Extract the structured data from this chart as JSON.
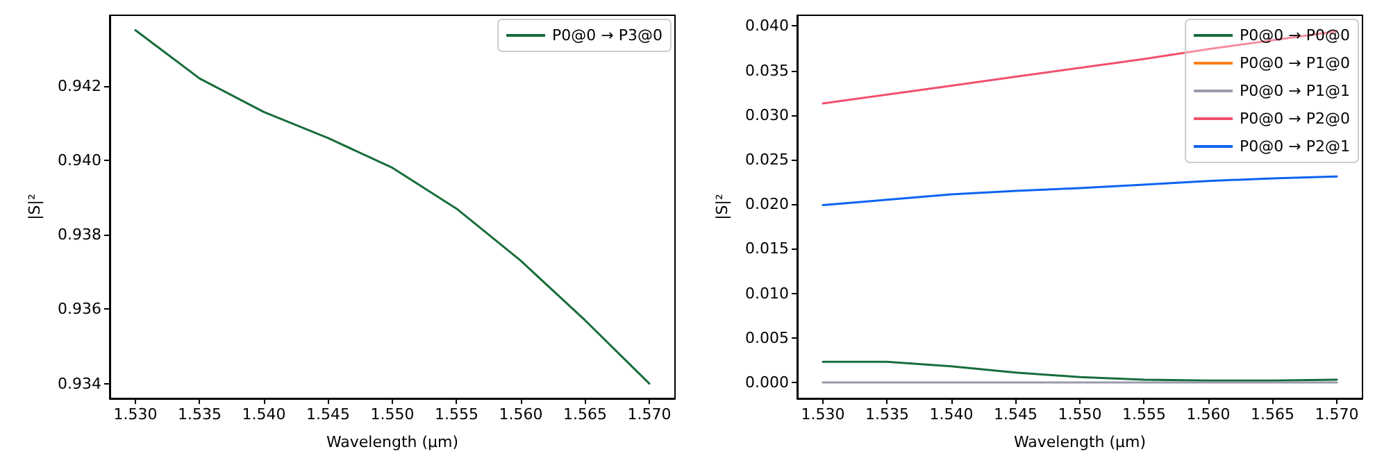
{
  "chart_data": [
    {
      "type": "line",
      "xlabel": "Wavelength (µm)",
      "ylabel": "|S|²",
      "x": [
        1.53,
        1.535,
        1.54,
        1.545,
        1.55,
        1.555,
        1.56,
        1.565,
        1.57
      ],
      "series": [
        {
          "name": "P0@0 → P3@0",
          "color": "#176d3a",
          "values": [
            0.9435,
            0.9422,
            0.9413,
            0.9406,
            0.9398,
            0.9387,
            0.9373,
            0.9357,
            0.934
          ]
        }
      ],
      "xlim": [
        1.528,
        1.572
      ],
      "ylim": [
        0.9336,
        0.9439
      ],
      "xticks": [
        {
          "value": 1.53,
          "label": "1.530"
        },
        {
          "value": 1.535,
          "label": "1.535"
        },
        {
          "value": 1.54,
          "label": "1.540"
        },
        {
          "value": 1.545,
          "label": "1.545"
        },
        {
          "value": 1.55,
          "label": "1.550"
        },
        {
          "value": 1.555,
          "label": "1.555"
        },
        {
          "value": 1.56,
          "label": "1.560"
        },
        {
          "value": 1.565,
          "label": "1.565"
        },
        {
          "value": 1.57,
          "label": "1.570"
        }
      ],
      "yticks": [
        {
          "value": 0.934,
          "label": "0.934"
        },
        {
          "value": 0.936,
          "label": "0.936"
        },
        {
          "value": 0.938,
          "label": "0.938"
        },
        {
          "value": 0.94,
          "label": "0.940"
        },
        {
          "value": 0.942,
          "label": "0.942"
        }
      ],
      "legend": "top right"
    },
    {
      "type": "line",
      "xlabel": "Wavelength (µm)",
      "ylabel": "|S|²",
      "x": [
        1.53,
        1.535,
        1.54,
        1.545,
        1.55,
        1.555,
        1.56,
        1.565,
        1.57
      ],
      "series": [
        {
          "name": "P0@0 → P0@0",
          "color": "#176d3a",
          "values": [
            0.0023,
            0.0023,
            0.0018,
            0.0011,
            0.0006,
            0.0003,
            0.0002,
            0.0002,
            0.0003
          ]
        },
        {
          "name": "P0@0 → P1@0",
          "color": "#ff7f0e",
          "values": [
            null,
            null,
            null,
            null,
            null,
            null,
            null,
            null,
            null
          ]
        },
        {
          "name": "P0@0 → P1@1",
          "color": "#9a9aa9",
          "values": [
            0,
            0,
            0,
            0,
            0,
            0,
            0,
            0,
            0
          ]
        },
        {
          "name": "P0@0 → P2@0",
          "color": "#f0506e",
          "values": [
            0.0313,
            0.0323,
            0.0333,
            0.0343,
            0.0353,
            0.0363,
            0.0374,
            0.0384,
            0.0394
          ]
        },
        {
          "name": "P0@0 → P2@1",
          "color": "#0c64f0",
          "values": [
            0.0199,
            0.0205,
            0.0211,
            0.0215,
            0.0218,
            0.0222,
            0.0226,
            0.0229,
            0.0231
          ]
        }
      ],
      "xlim": [
        1.528,
        1.572
      ],
      "ylim": [
        -0.0018,
        0.0412
      ],
      "xticks": [
        {
          "value": 1.53,
          "label": "1.530"
        },
        {
          "value": 1.535,
          "label": "1.535"
        },
        {
          "value": 1.54,
          "label": "1.540"
        },
        {
          "value": 1.545,
          "label": "1.545"
        },
        {
          "value": 1.55,
          "label": "1.550"
        },
        {
          "value": 1.555,
          "label": "1.555"
        },
        {
          "value": 1.56,
          "label": "1.560"
        },
        {
          "value": 1.565,
          "label": "1.565"
        },
        {
          "value": 1.57,
          "label": "1.570"
        }
      ],
      "yticks": [
        {
          "value": 0,
          "label": "0.000"
        },
        {
          "value": 0.005,
          "label": "0.005"
        },
        {
          "value": 0.01,
          "label": "0.010"
        },
        {
          "value": 0.015,
          "label": "0.015"
        },
        {
          "value": 0.02,
          "label": "0.020"
        },
        {
          "value": 0.025,
          "label": "0.025"
        },
        {
          "value": 0.03,
          "label": "0.030"
        },
        {
          "value": 0.035,
          "label": "0.035"
        },
        {
          "value": 0.04,
          "label": "0.040"
        }
      ],
      "legend": "top right"
    }
  ]
}
